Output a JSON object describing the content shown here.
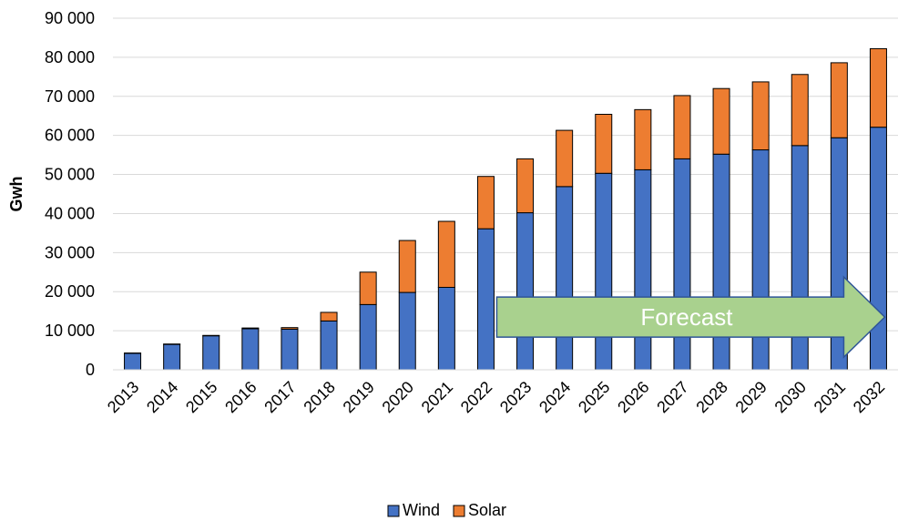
{
  "chart_data": {
    "type": "bar",
    "stacked": true,
    "title": "",
    "xlabel": "",
    "ylabel": "Gwh",
    "ylim": [
      0,
      90000
    ],
    "y_ticks": [
      0,
      10000,
      20000,
      30000,
      40000,
      50000,
      60000,
      70000,
      80000,
      90000
    ],
    "y_tick_labels": [
      "0",
      "10 000",
      "20 000",
      "30 000",
      "40 000",
      "50 000",
      "60 000",
      "70 000",
      "80 000",
      "90 000"
    ],
    "grid": true,
    "legend_position": "bottom",
    "categories": [
      "2013",
      "2014",
      "2015",
      "2016",
      "2017",
      "2018",
      "2019",
      "2020",
      "2021",
      "2022",
      "2023",
      "2024",
      "2025",
      "2026",
      "2027",
      "2028",
      "2029",
      "2030",
      "2031",
      "2032"
    ],
    "series": [
      {
        "name": "Wind",
        "color": "#4472C4",
        "values": [
          4200,
          6500,
          8700,
          10500,
          10400,
          12500,
          16700,
          19800,
          21100,
          36100,
          40200,
          46900,
          50300,
          51200,
          54000,
          55200,
          56300,
          57400,
          59400,
          62100
        ]
      },
      {
        "name": "Solar",
        "color": "#ED7D31",
        "values": [
          100,
          100,
          100,
          200,
          400,
          2200,
          8300,
          13300,
          16900,
          13400,
          13800,
          14400,
          15100,
          15400,
          16200,
          16800,
          17400,
          18200,
          19200,
          20100
        ]
      }
    ],
    "annotations": [
      {
        "type": "arrow",
        "label": "Forecast",
        "from_category": "2022",
        "to_category": "2032",
        "color": "#A9D18E",
        "border": "#2F5597"
      }
    ]
  }
}
